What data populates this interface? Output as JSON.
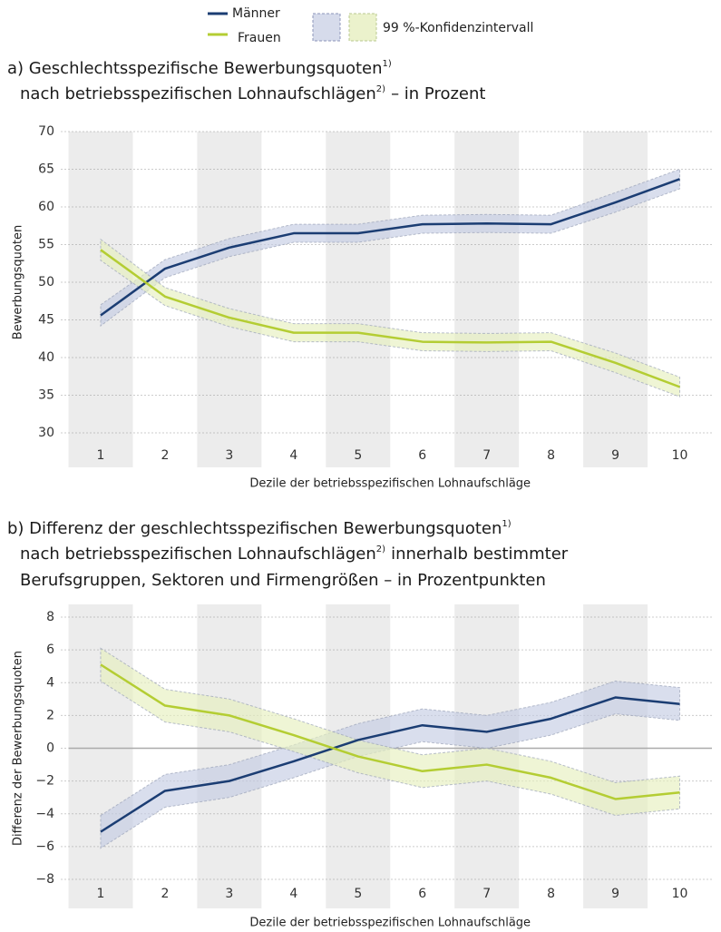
{
  "legend": {
    "ci_label": "99 %-Konfidenzintervall"
  },
  "chart_data": [
    {
      "type": "line",
      "title": {
        "line1": "a) Geschlechtsspezifische Bewerbungsquoten",
        "line1_note": "1)",
        "line2": "nach betriebsspezifischen Lohnaufschlägen",
        "line2_note": "2)",
        "line2_end": "– in Prozent"
      },
      "ylabel": "Bewerbungsquoten",
      "xlabel": "Dezile der betriebsspezifischen Lohnaufschläge",
      "categories": [
        "1",
        "2",
        "3",
        "4",
        "5",
        "6",
        "7",
        "8",
        "9",
        "10"
      ],
      "ylim": [
        30,
        70
      ],
      "yticks": [
        30,
        35,
        40,
        45,
        50,
        55,
        60,
        65,
        70
      ],
      "grid": true,
      "series": [
        {
          "name": "Männer",
          "color": "#1b3d73",
          "band_color": "#c5cce3",
          "values": [
            45.6,
            51.8,
            54.6,
            56.5,
            56.5,
            57.7,
            57.8,
            57.7,
            60.6,
            63.7
          ],
          "ci_lower": [
            44.2,
            50.6,
            53.4,
            55.3,
            55.3,
            56.5,
            56.6,
            56.5,
            59.3,
            62.4
          ],
          "ci_upper": [
            47.0,
            53.0,
            55.8,
            57.7,
            57.7,
            58.9,
            59.0,
            58.9,
            61.9,
            65.0
          ]
        },
        {
          "name": "Frauen",
          "color": "#b4cd33",
          "band_color": "#e6efbf",
          "values": [
            54.3,
            48.1,
            45.3,
            43.3,
            43.3,
            42.1,
            42.0,
            42.1,
            39.3,
            36.1
          ],
          "ci_lower": [
            52.9,
            46.9,
            44.1,
            42.1,
            42.1,
            40.9,
            40.8,
            40.9,
            38.0,
            34.8
          ],
          "ci_upper": [
            55.7,
            49.3,
            46.5,
            44.5,
            44.5,
            43.3,
            43.2,
            43.3,
            40.6,
            37.4
          ]
        }
      ]
    },
    {
      "type": "line",
      "title": {
        "line1": "b) Differenz der geschlechtsspezifischen Bewerbungsquoten",
        "line1_note": "1)",
        "line2": "nach betriebsspezifischen Lohnaufschlägen",
        "line2_note": "2)",
        "line2_end": "innerhalb bestimmter",
        "line3": "Berufsgruppen, Sektoren und Firmengrößen – in Prozentpunkten"
      },
      "ylabel": "Differenz der Bewerbungsquoten",
      "xlabel": "Dezile der betriebsspezifischen Lohnaufschläge",
      "categories": [
        "1",
        "2",
        "3",
        "4",
        "5",
        "6",
        "7",
        "8",
        "9",
        "10"
      ],
      "ylim": [
        -8,
        8
      ],
      "yticks": [
        {
          "value": -8,
          "label": "−8"
        },
        {
          "value": -6,
          "label": "−6"
        },
        {
          "value": -4,
          "label": "−4"
        },
        {
          "value": -2,
          "label": "−2"
        },
        0,
        2,
        4,
        6,
        8
      ],
      "grid": true,
      "reference_line": 0,
      "series": [
        {
          "name": "Männer",
          "color": "#1b3d73",
          "band_color": "#c5cce3",
          "values": [
            -5.1,
            -2.6,
            -2.0,
            -0.8,
            0.5,
            1.4,
            1.0,
            1.8,
            3.1,
            2.7
          ],
          "ci_lower": [
            -6.1,
            -3.6,
            -3.0,
            -1.8,
            -0.5,
            0.4,
            0.0,
            0.8,
            2.1,
            1.7
          ],
          "ci_upper": [
            -4.1,
            -1.6,
            -1.0,
            0.2,
            1.5,
            2.4,
            2.0,
            2.8,
            4.1,
            3.7
          ]
        },
        {
          "name": "Frauen",
          "color": "#b4cd33",
          "band_color": "#e6efbf",
          "values": [
            5.1,
            2.6,
            2.0,
            0.8,
            -0.5,
            -1.4,
            -1.0,
            -1.8,
            -3.1,
            -2.7
          ],
          "ci_lower": [
            4.1,
            1.6,
            1.0,
            -0.2,
            -1.5,
            -2.4,
            -2.0,
            -2.8,
            -4.1,
            -3.7
          ],
          "ci_upper": [
            6.1,
            3.6,
            3.0,
            1.8,
            0.5,
            -0.4,
            0.0,
            -0.8,
            -2.1,
            -1.7
          ]
        }
      ]
    }
  ]
}
